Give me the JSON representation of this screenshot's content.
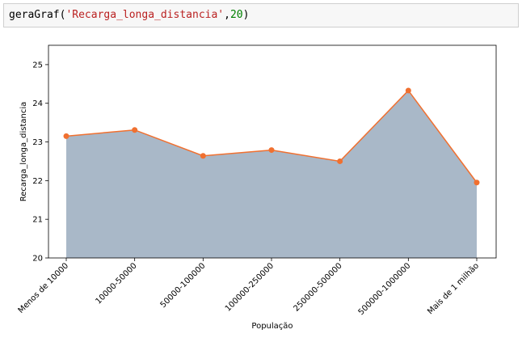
{
  "cell": {
    "func": "geraGraf",
    "open_paren": "(",
    "arg_string": "'Recarga_longa_distancia'",
    "comma": ",",
    "arg_number": "20",
    "close_paren": ")"
  },
  "chart_data": {
    "type": "area",
    "categories": [
      "Menos de 10000",
      "10000-50000",
      "50000-100000",
      "100000-250000",
      "250000-500000",
      "500000-1000000",
      "Mais de 1 milhão"
    ],
    "values": [
      23.15,
      23.31,
      22.64,
      22.79,
      22.5,
      24.33,
      21.95
    ],
    "xlabel": "População",
    "ylabel": "Recarga_longa_distancia",
    "ylim": [
      20,
      25.5
    ],
    "yticks": [
      "20",
      "21",
      "22",
      "23",
      "24",
      "25"
    ],
    "grid": false,
    "legend": "none",
    "colors": {
      "fill": "#a9b8c8",
      "line": "#f07030",
      "marker": "#f07030"
    }
  }
}
